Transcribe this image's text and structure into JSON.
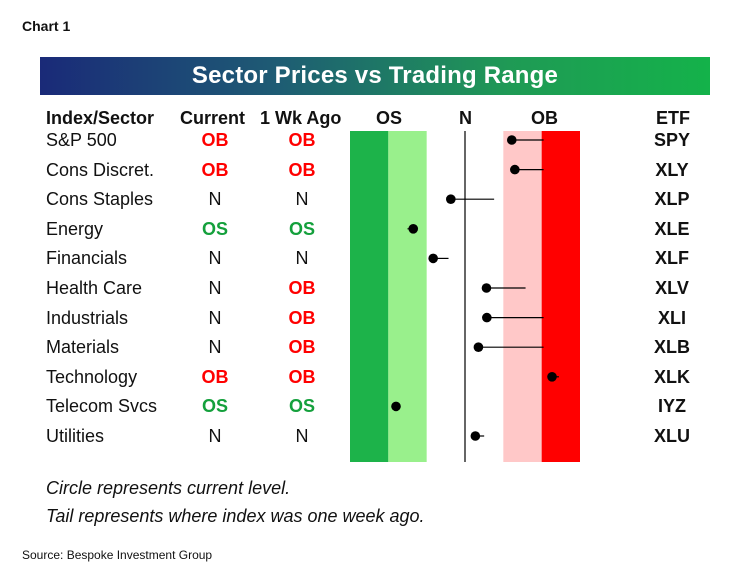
{
  "chart_label": "Chart 1",
  "title": "Sector Prices vs Trading Range",
  "headers": {
    "name": "Index/Sector",
    "current": "Current",
    "week_ago": "1 Wk Ago",
    "os": "OS",
    "n": "N",
    "ob": "OB",
    "etf": "ETF"
  },
  "rows": [
    {
      "name": "S&P 500",
      "current": "OB",
      "week_ago": "OB",
      "etf": "SPY"
    },
    {
      "name": "Cons Discret.",
      "current": "OB",
      "week_ago": "OB",
      "etf": "XLY"
    },
    {
      "name": "Cons Staples",
      "current": "N",
      "week_ago": "N",
      "etf": "XLP"
    },
    {
      "name": "Energy",
      "current": "OS",
      "week_ago": "OS",
      "etf": "XLE"
    },
    {
      "name": "Financials",
      "current": "N",
      "week_ago": "N",
      "etf": "XLF"
    },
    {
      "name": "Health Care",
      "current": "N",
      "week_ago": "OB",
      "etf": "XLV"
    },
    {
      "name": "Industrials",
      "current": "N",
      "week_ago": "OB",
      "etf": "XLI"
    },
    {
      "name": "Materials",
      "current": "N",
      "week_ago": "OB",
      "etf": "XLB"
    },
    {
      "name": "Technology",
      "current": "OB",
      "week_ago": "OB",
      "etf": "XLK"
    },
    {
      "name": "Telecom Svcs",
      "current": "OS",
      "week_ago": "OS",
      "etf": "IYZ"
    },
    {
      "name": "Utilities",
      "current": "N",
      "week_ago": "N",
      "etf": "XLU"
    }
  ],
  "notes": [
    "Circle represents current level.",
    "Tail represents where index was one week ago."
  ],
  "source": "Source: Bespoke Investment Group",
  "colors": {
    "OB": "#ff0000",
    "OS": "#14a03c",
    "N": "#111111",
    "os_dark": "#1db34a",
    "os_light": "#99f08c",
    "ob_light": "#ffc8c8",
    "ob_dark": "#ff0000"
  },
  "chart_data": {
    "type": "scatter",
    "title": "Sector Prices vs Trading Range",
    "scale_note": "horizontal position relative to trading range; bands: OS (oversold), N (neutral), OB (overbought)",
    "categories": [
      "S&P 500",
      "Cons Discret.",
      "Cons Staples",
      "Energy",
      "Financials",
      "Health Care",
      "Industrials",
      "Materials",
      "Technology",
      "Telecom Svcs",
      "Utilities"
    ],
    "xlim": [
      -3,
      3
    ],
    "bands": [
      {
        "label": "OS",
        "from": -3,
        "to": -1,
        "inner": -2
      },
      {
        "label": "N",
        "from": -1,
        "to": 1,
        "center": 0
      },
      {
        "label": "OB",
        "from": 1,
        "to": 3,
        "inner": 2
      }
    ],
    "series": [
      {
        "values": [
          1.22,
          1.3,
          -0.37,
          -1.35,
          -0.83,
          0.56,
          0.57,
          0.35,
          2.27,
          -1.8,
          0.27
        ]
      },
      {
        "values": [
          2.05,
          2.05,
          0.76,
          -1.5,
          -0.43,
          1.58,
          2.05,
          2.05,
          2.45,
          -1.8,
          0.5
        ]
      }
    ]
  }
}
